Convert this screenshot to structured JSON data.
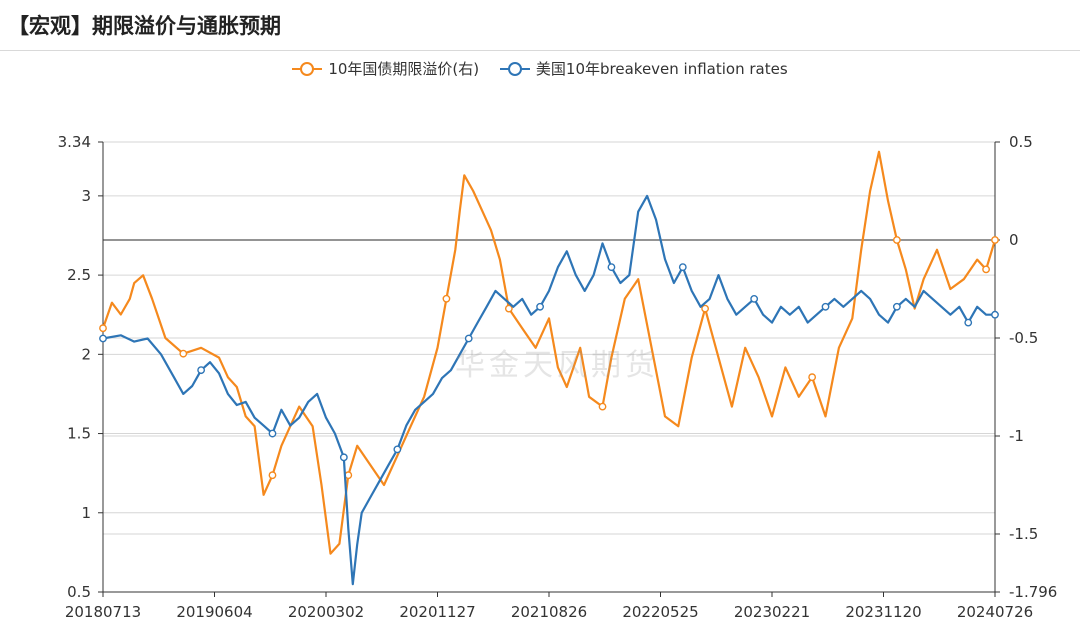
{
  "header": {
    "title": "【宏观】期限溢价与通胀预期"
  },
  "watermark": "华金天风期货",
  "chart_data": {
    "type": "line",
    "x_ticks": [
      "20180713",
      "20190604",
      "20200302",
      "20201127",
      "20210826",
      "20220525",
      "20230221",
      "20231120",
      "20240726"
    ],
    "left_axis": {
      "ticks": [
        "0.5",
        "1",
        "1.5",
        "2",
        "2.5",
        "3",
        "3.34"
      ],
      "ylim": [
        0.5,
        3.34
      ]
    },
    "right_axis": {
      "ticks": [
        "0.5",
        "0",
        "-0.5",
        "-1",
        "-1.5",
        "-1.796"
      ],
      "ylim": [
        -1.796,
        0.5
      ]
    },
    "grid": true,
    "zero_line_right": true,
    "legend_position": "top-center",
    "series": [
      {
        "name": "10年国债期限溢价(右)",
        "axis": "right",
        "color": "#F5891D",
        "points": [
          [
            0.0,
            -0.45
          ],
          [
            0.01,
            -0.32
          ],
          [
            0.02,
            -0.38
          ],
          [
            0.03,
            -0.3
          ],
          [
            0.035,
            -0.22
          ],
          [
            0.045,
            -0.18
          ],
          [
            0.055,
            -0.3
          ],
          [
            0.07,
            -0.5
          ],
          [
            0.09,
            -0.58
          ],
          [
            0.11,
            -0.55
          ],
          [
            0.13,
            -0.6
          ],
          [
            0.14,
            -0.7
          ],
          [
            0.15,
            -0.75
          ],
          [
            0.16,
            -0.9
          ],
          [
            0.17,
            -0.95
          ],
          [
            0.18,
            -1.3
          ],
          [
            0.19,
            -1.2
          ],
          [
            0.2,
            -1.05
          ],
          [
            0.21,
            -0.95
          ],
          [
            0.22,
            -0.85
          ],
          [
            0.235,
            -0.95
          ],
          [
            0.245,
            -1.25
          ],
          [
            0.255,
            -1.6
          ],
          [
            0.265,
            -1.55
          ],
          [
            0.275,
            -1.2
          ],
          [
            0.285,
            -1.05
          ],
          [
            0.3,
            -1.15
          ],
          [
            0.315,
            -1.25
          ],
          [
            0.33,
            -1.1
          ],
          [
            0.345,
            -0.95
          ],
          [
            0.36,
            -0.8
          ],
          [
            0.375,
            -0.55
          ],
          [
            0.385,
            -0.3
          ],
          [
            0.395,
            -0.05
          ],
          [
            0.4,
            0.15
          ],
          [
            0.405,
            0.33
          ],
          [
            0.415,
            0.25
          ],
          [
            0.425,
            0.15
          ],
          [
            0.435,
            0.05
          ],
          [
            0.445,
            -0.1
          ],
          [
            0.455,
            -0.35
          ],
          [
            0.47,
            -0.45
          ],
          [
            0.485,
            -0.55
          ],
          [
            0.5,
            -0.4
          ],
          [
            0.51,
            -0.65
          ],
          [
            0.52,
            -0.75
          ],
          [
            0.535,
            -0.55
          ],
          [
            0.545,
            -0.8
          ],
          [
            0.56,
            -0.85
          ],
          [
            0.57,
            -0.6
          ],
          [
            0.585,
            -0.3
          ],
          [
            0.6,
            -0.2
          ],
          [
            0.615,
            -0.55
          ],
          [
            0.63,
            -0.9
          ],
          [
            0.645,
            -0.95
          ],
          [
            0.66,
            -0.6
          ],
          [
            0.675,
            -0.35
          ],
          [
            0.69,
            -0.6
          ],
          [
            0.705,
            -0.85
          ],
          [
            0.72,
            -0.55
          ],
          [
            0.735,
            -0.7
          ],
          [
            0.75,
            -0.9
          ],
          [
            0.765,
            -0.65
          ],
          [
            0.78,
            -0.8
          ],
          [
            0.795,
            -0.7
          ],
          [
            0.81,
            -0.9
          ],
          [
            0.825,
            -0.55
          ],
          [
            0.84,
            -0.4
          ],
          [
            0.85,
            -0.05
          ],
          [
            0.86,
            0.25
          ],
          [
            0.87,
            0.45
          ],
          [
            0.88,
            0.2
          ],
          [
            0.89,
            0.0
          ],
          [
            0.9,
            -0.15
          ],
          [
            0.91,
            -0.35
          ],
          [
            0.92,
            -0.2
          ],
          [
            0.935,
            -0.05
          ],
          [
            0.95,
            -0.25
          ],
          [
            0.965,
            -0.2
          ],
          [
            0.98,
            -0.1
          ],
          [
            0.99,
            -0.15
          ],
          [
            1.0,
            0.0
          ]
        ]
      },
      {
        "name": "美国10年breakeven inflation rates",
        "axis": "left",
        "color": "#2E75B6",
        "points": [
          [
            0.0,
            2.1
          ],
          [
            0.02,
            2.12
          ],
          [
            0.035,
            2.08
          ],
          [
            0.05,
            2.1
          ],
          [
            0.065,
            2.0
          ],
          [
            0.08,
            1.85
          ],
          [
            0.09,
            1.75
          ],
          [
            0.1,
            1.8
          ],
          [
            0.11,
            1.9
          ],
          [
            0.12,
            1.95
          ],
          [
            0.13,
            1.88
          ],
          [
            0.14,
            1.75
          ],
          [
            0.15,
            1.68
          ],
          [
            0.16,
            1.7
          ],
          [
            0.17,
            1.6
          ],
          [
            0.18,
            1.55
          ],
          [
            0.19,
            1.5
          ],
          [
            0.2,
            1.65
          ],
          [
            0.21,
            1.55
          ],
          [
            0.22,
            1.6
          ],
          [
            0.23,
            1.7
          ],
          [
            0.24,
            1.75
          ],
          [
            0.25,
            1.6
          ],
          [
            0.26,
            1.5
          ],
          [
            0.27,
            1.35
          ],
          [
            0.275,
            0.9
          ],
          [
            0.28,
            0.55
          ],
          [
            0.285,
            0.8
          ],
          [
            0.29,
            1.0
          ],
          [
            0.3,
            1.1
          ],
          [
            0.31,
            1.2
          ],
          [
            0.32,
            1.3
          ],
          [
            0.33,
            1.4
          ],
          [
            0.34,
            1.55
          ],
          [
            0.35,
            1.65
          ],
          [
            0.36,
            1.7
          ],
          [
            0.37,
            1.75
          ],
          [
            0.38,
            1.85
          ],
          [
            0.39,
            1.9
          ],
          [
            0.4,
            2.0
          ],
          [
            0.41,
            2.1
          ],
          [
            0.42,
            2.2
          ],
          [
            0.43,
            2.3
          ],
          [
            0.44,
            2.4
          ],
          [
            0.45,
            2.35
          ],
          [
            0.46,
            2.3
          ],
          [
            0.47,
            2.35
          ],
          [
            0.48,
            2.25
          ],
          [
            0.49,
            2.3
          ],
          [
            0.5,
            2.4
          ],
          [
            0.51,
            2.55
          ],
          [
            0.52,
            2.65
          ],
          [
            0.53,
            2.5
          ],
          [
            0.54,
            2.4
          ],
          [
            0.55,
            2.5
          ],
          [
            0.56,
            2.7
          ],
          [
            0.57,
            2.55
          ],
          [
            0.58,
            2.45
          ],
          [
            0.59,
            2.5
          ],
          [
            0.6,
            2.9
          ],
          [
            0.61,
            3.0
          ],
          [
            0.62,
            2.85
          ],
          [
            0.63,
            2.6
          ],
          [
            0.64,
            2.45
          ],
          [
            0.65,
            2.55
          ],
          [
            0.66,
            2.4
          ],
          [
            0.67,
            2.3
          ],
          [
            0.68,
            2.35
          ],
          [
            0.69,
            2.5
          ],
          [
            0.7,
            2.35
          ],
          [
            0.71,
            2.25
          ],
          [
            0.72,
            2.3
          ],
          [
            0.73,
            2.35
          ],
          [
            0.74,
            2.25
          ],
          [
            0.75,
            2.2
          ],
          [
            0.76,
            2.3
          ],
          [
            0.77,
            2.25
          ],
          [
            0.78,
            2.3
          ],
          [
            0.79,
            2.2
          ],
          [
            0.8,
            2.25
          ],
          [
            0.81,
            2.3
          ],
          [
            0.82,
            2.35
          ],
          [
            0.83,
            2.3
          ],
          [
            0.84,
            2.35
          ],
          [
            0.85,
            2.4
          ],
          [
            0.86,
            2.35
          ],
          [
            0.87,
            2.25
          ],
          [
            0.88,
            2.2
          ],
          [
            0.89,
            2.3
          ],
          [
            0.9,
            2.35
          ],
          [
            0.91,
            2.3
          ],
          [
            0.92,
            2.4
          ],
          [
            0.93,
            2.35
          ],
          [
            0.94,
            2.3
          ],
          [
            0.95,
            2.25
          ],
          [
            0.96,
            2.3
          ],
          [
            0.97,
            2.2
          ],
          [
            0.98,
            2.3
          ],
          [
            0.99,
            2.25
          ],
          [
            1.0,
            2.25
          ]
        ]
      }
    ]
  }
}
